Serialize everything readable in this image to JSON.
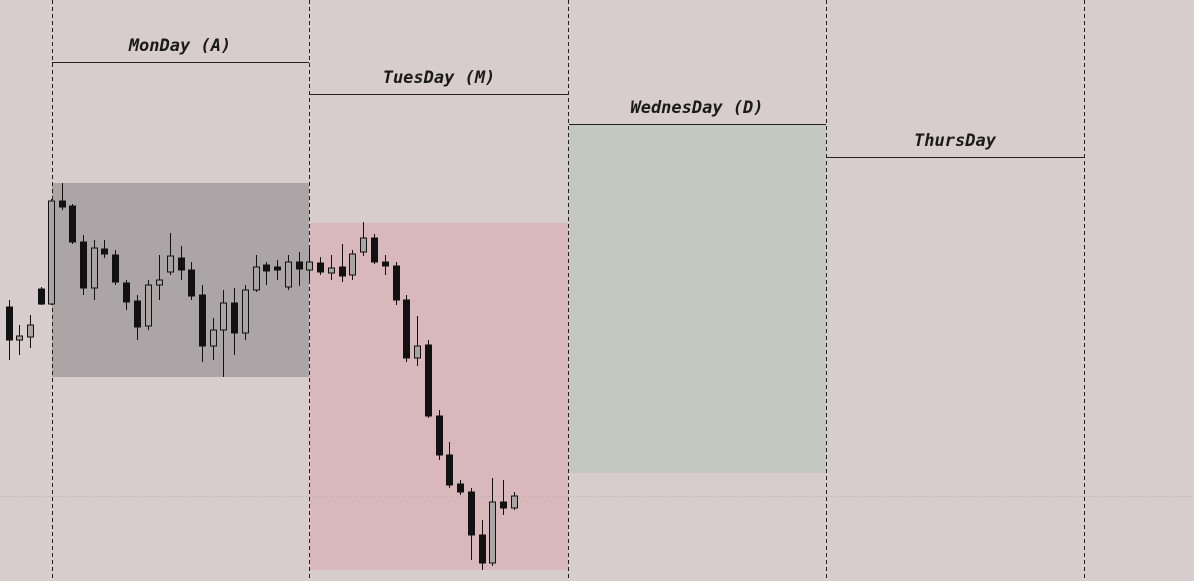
{
  "days": [
    {
      "label": "MonDay (A)"
    },
    {
      "label": "TuesDay (M)"
    },
    {
      "label": "WednesDay (D)"
    },
    {
      "label": "ThursDay"
    }
  ]
}
